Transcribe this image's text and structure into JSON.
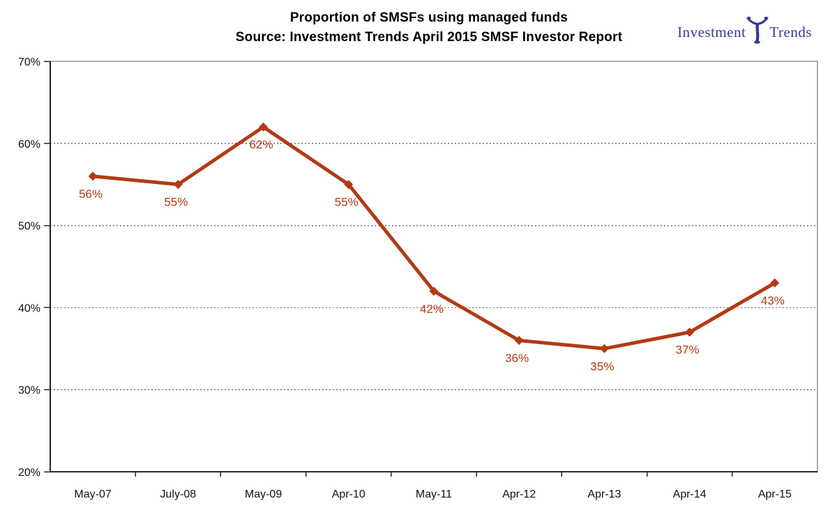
{
  "header": {
    "title_line1": "Proportion of SMSFs using managed funds",
    "title_line2": "Source: Investment Trends April 2015 SMSF Investor Report"
  },
  "logo": {
    "word1": "Investment",
    "word2": "Trends",
    "color": "#333994"
  },
  "chart_data": {
    "type": "line",
    "title": "Proportion of SMSFs using managed funds",
    "subtitle": "Source: Investment Trends April 2015 SMSF Investor Report",
    "categories": [
      "May-07",
      "July-08",
      "May-09",
      "Apr-10",
      "May-11",
      "Apr-12",
      "Apr-13",
      "Apr-14",
      "Apr-15"
    ],
    "values": [
      56,
      55,
      62,
      55,
      42,
      36,
      35,
      37,
      43
    ],
    "data_labels": [
      "56%",
      "55%",
      "62%",
      "55%",
      "42%",
      "36%",
      "35%",
      "37%",
      "43%"
    ],
    "ylim": [
      20,
      70
    ],
    "yticks": [
      20,
      30,
      40,
      50,
      60,
      70
    ],
    "ytick_labels": [
      "20%",
      "30%",
      "40%",
      "50%",
      "60%",
      "70%"
    ],
    "gridline_values": [
      30,
      40,
      50,
      60
    ],
    "grid_style": "horizontal-dotted",
    "legend": "none",
    "xlabel": "",
    "ylabel": "",
    "line_color": "#B23A13",
    "label_color": "#B23A13",
    "marker": "diamond",
    "axis_color": "#262626",
    "border_color": "#595959",
    "grid_color": "#6e6e6e",
    "tick_text_color": "#111111"
  }
}
